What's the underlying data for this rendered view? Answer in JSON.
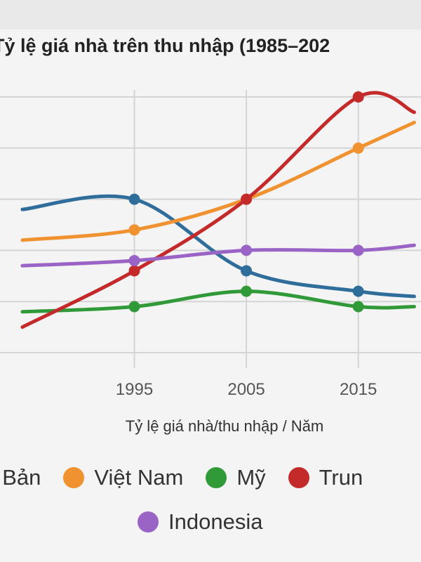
{
  "chart_data": {
    "type": "line",
    "title": "Tỷ lệ giá nhà trên thu nhập (1985–202",
    "xlabel": "Tỷ lệ giá nhà/thu nhập / Năm",
    "ylabel": "",
    "x": [
      1985,
      1995,
      2005,
      2015,
      2020
    ],
    "xticks": [
      "1995",
      "2005",
      "2015"
    ],
    "xlim": [
      1983,
      2020.6
    ],
    "ylim": [
      0,
      50
    ],
    "grid": true,
    "series": [
      {
        "name": "t Bản",
        "color": "#2f6e9b",
        "values": [
          28,
          30,
          16,
          12,
          11
        ]
      },
      {
        "name": "Việt Nam",
        "color": "#f0922f",
        "values": [
          22,
          24,
          30,
          40,
          45
        ]
      },
      {
        "name": "Mỹ",
        "color": "#2f9a37",
        "values": [
          8,
          9,
          12,
          9,
          9
        ]
      },
      {
        "name": "Trun",
        "color": "#c42a2a",
        "values": [
          5,
          16,
          30,
          50,
          47
        ]
      },
      {
        "name": "Indonesia",
        "color": "#9a63c6",
        "values": [
          17,
          18,
          20,
          20,
          21
        ]
      }
    ]
  }
}
